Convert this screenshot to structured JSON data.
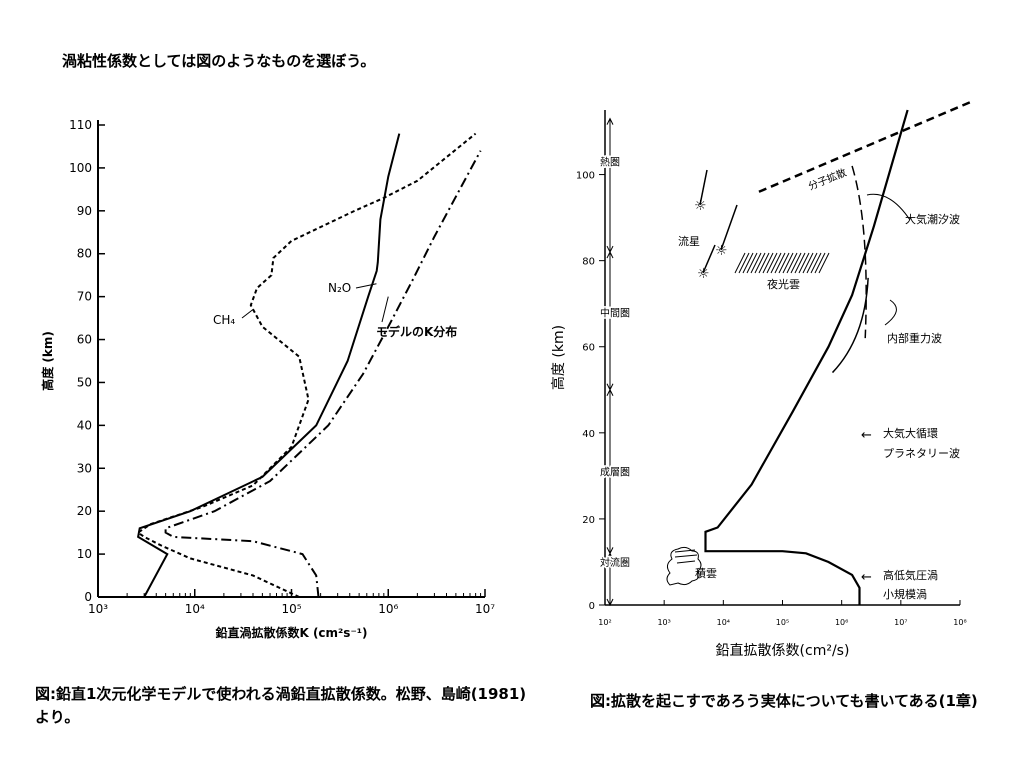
{
  "slide": {
    "title": "渦粘性係数としては図のようなものを選ぼう。",
    "caption_left": "図:鉛直1次元化学モデルで使われる渦鉛直拡散係数。松野、島崎(1981)より。",
    "caption_right": "図:拡散を起こすであろう実体についても書いてある(1章)"
  },
  "chart_data": [
    {
      "type": "line",
      "title": "",
      "xlabel": "鉛直渦拡散係数K (cm²s⁻¹)",
      "ylabel": "高度 (km)",
      "xscale": "log",
      "xlim": [
        1000,
        10000000
      ],
      "ylim": [
        0,
        110
      ],
      "x_ticks": [
        "10³",
        "10⁴",
        "10⁵",
        "10⁶",
        "10⁷"
      ],
      "y_ticks": [
        "0",
        "10",
        "20",
        "30",
        "40",
        "50",
        "60",
        "70",
        "80",
        "90",
        "100",
        "110"
      ],
      "series": [
        {
          "name": "N₂O",
          "style": "solid",
          "points": [
            [
              3000,
              0
            ],
            [
              5200,
              10
            ],
            [
              2600,
              14
            ],
            [
              2700,
              16
            ],
            [
              9000,
              20
            ],
            [
              50000,
              28
            ],
            [
              180000,
              40
            ],
            [
              380000,
              55
            ],
            [
              620000,
              70
            ],
            [
              760000,
              76
            ],
            [
              780000,
              78
            ],
            [
              830000,
              88
            ],
            [
              1000000,
              98
            ],
            [
              1300000,
              108
            ]
          ]
        },
        {
          "name": "CH₄",
          "style": "dashed",
          "points": [
            [
              120000,
              0
            ],
            [
              40000,
              5
            ],
            [
              9000,
              9
            ],
            [
              4500,
              12
            ],
            [
              3000,
              14
            ],
            [
              2600,
              15
            ],
            [
              3500,
              17
            ],
            [
              12000,
              21
            ],
            [
              40000,
              26
            ],
            [
              100000,
              35
            ],
            [
              150000,
              46
            ],
            [
              120000,
              56
            ],
            [
              50000,
              63
            ],
            [
              38000,
              68
            ],
            [
              44000,
              72
            ],
            [
              62000,
              75
            ],
            [
              65000,
              79
            ],
            [
              100000,
              83
            ],
            [
              450000,
              90
            ],
            [
              900000,
              93
            ],
            [
              2000000,
              97
            ],
            [
              8000000,
              108
            ]
          ]
        },
        {
          "name": "モデルのK分布",
          "style": "dashdot",
          "points": [
            [
              190000,
              0
            ],
            [
              180000,
              5
            ],
            [
              130000,
              10
            ],
            [
              40000,
              13
            ],
            [
              6000,
              14
            ],
            [
              5000,
              15
            ],
            [
              5000,
              16
            ],
            [
              16000,
              20
            ],
            [
              60000,
              27
            ],
            [
              240000,
              40
            ],
            [
              550000,
              52
            ],
            [
              1000000,
              63
            ],
            [
              1800000,
              74
            ],
            [
              3000000,
              84
            ],
            [
              9000000,
              104
            ]
          ]
        }
      ]
    },
    {
      "type": "line",
      "title": "",
      "xlabel": "鉛直拡散係数(cm²/s)",
      "ylabel": "高度 (km)",
      "xscale": "log",
      "xlim": [
        100,
        100000000
      ],
      "ylim": [
        0,
        115
      ],
      "x_ticks": [
        "10²",
        "10³",
        "10⁴",
        "10⁵",
        "10⁶",
        "10⁷",
        "10⁸"
      ],
      "y_ticks": [
        "0",
        "20",
        "40",
        "60",
        "80",
        "100"
      ],
      "layers": [
        "対流圏",
        "成層圏",
        "中間圏",
        "熱圏"
      ],
      "series": [
        {
          "name": "",
          "style": "solid",
          "points": [
            [
              2000000,
              0
            ],
            [
              2000000,
              4
            ],
            [
              1500000,
              7
            ],
            [
              600000,
              10
            ],
            [
              250000,
              12
            ],
            [
              100000,
              12.5
            ],
            [
              5000,
              12.5
            ],
            [
              5000,
              17
            ],
            [
              8000,
              18
            ],
            [
              30000,
              28
            ],
            [
              150000,
              45
            ],
            [
              600000,
              60
            ],
            [
              1500000,
              72
            ],
            [
              3500000,
              88
            ],
            [
              13000000,
              115
            ]
          ]
        }
      ],
      "labels": {
        "molecular_diffusion": "分子拡散",
        "tides": "大気潮汐波",
        "meteors": "流星",
        "noctilucent": "夜光雲",
        "gravity_waves": "内部重力波",
        "planetary_waves_1": "大気大循環",
        "planetary_waves_2": "プラネタリー波",
        "weather_1": "高低気圧渦",
        "weather_2": "小規模渦",
        "cumulus": "積雲"
      }
    }
  ]
}
